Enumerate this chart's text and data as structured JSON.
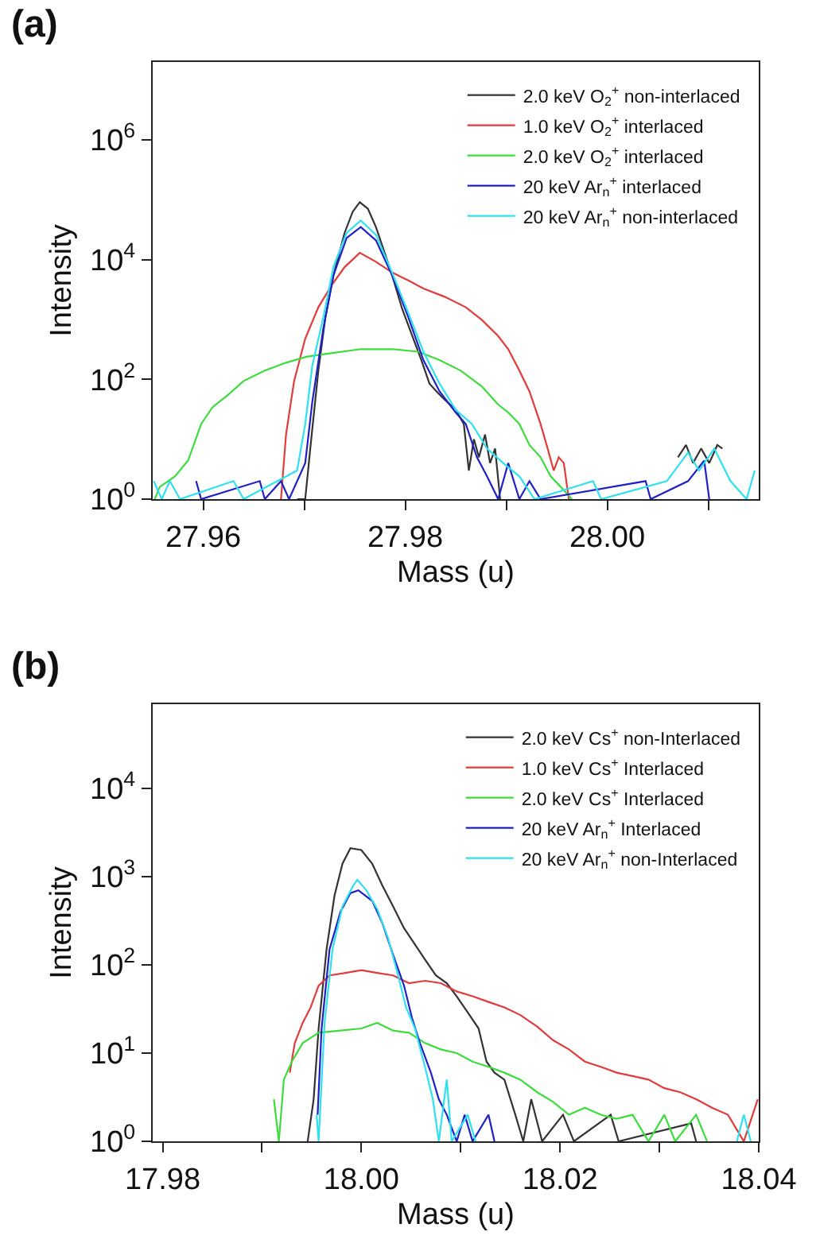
{
  "chart_data": [
    {
      "type": "line",
      "title": "(a)",
      "xlabel": "Mass (u)",
      "ylabel": "Intensity",
      "log": "y",
      "legend": "top right",
      "xlim": [
        27.955,
        28.015
      ],
      "xticks": [
        27.96,
        {
          "value": 27.97,
          "label": null
        },
        27.98,
        {
          "value": 27.99,
          "label": null
        },
        {
          "value": 28.0,
          "label": "28.00"
        },
        {
          "value": 28.01,
          "label": null
        }
      ],
      "ylim": [
        1,
        20000000
      ],
      "yticks": [
        {
          "value": 1,
          "label": "10$^{0}$"
        },
        {
          "value": 100,
          "label": "10$^{2}$"
        },
        {
          "value": 10000,
          "label": "10$^{4}$"
        },
        {
          "value": 1000000,
          "label": "10$^{6}$"
        }
      ],
      "series": [
        {
          "name": "2.0 keV O$_{2}$$^{+}$ non-interlaced",
          "color": "#333333",
          "x": [
            27.9693,
            27.9701,
            27.9706,
            27.9714,
            27.9721,
            27.9729,
            27.974,
            27.9748,
            27.9755,
            27.9763,
            27.9771,
            27.9779,
            27.9787,
            27.9797,
            27.9808,
            27.9816,
            27.9824,
            27.9831,
            27.9839,
            27.985,
            27.9858,
            27.9863,
            27.9868,
            27.9873,
            27.9879,
            27.9884,
            27.9889,
            27.9894,
            28.0,
            28.007,
            28.0078,
            28.0085,
            28.0093,
            28.0101,
            28.0109,
            28.0114
          ],
          "values": [
            1,
            1,
            7,
            140,
            1100,
            5500,
            28000,
            63000,
            91000,
            71000,
            35000,
            14000,
            5500,
            1500,
            480,
            210,
            85,
            63,
            46,
            31,
            18,
            3,
            10,
            5,
            12,
            4,
            7,
            1,
            null,
            5,
            8,
            4,
            7,
            4,
            8,
            7
          ]
        },
        {
          "name": "1.0 keV O$_{2}$$^{+}$ interlaced",
          "color": "#e23b3b",
          "x": [
            27.9677,
            27.9682,
            27.969,
            27.9701,
            27.9714,
            27.9727,
            27.974,
            27.9755,
            27.9771,
            27.9787,
            27.9803,
            27.9818,
            27.9839,
            27.986,
            27.9876,
            27.9892,
            27.9902,
            27.9913,
            27.9923,
            27.9934,
            27.9941,
            27.9947,
            27.9952,
            27.9957,
            27.9962
          ],
          "values": [
            1,
            12,
            94,
            480,
            1600,
            3700,
            7500,
            13000,
            9200,
            6100,
            4500,
            3300,
            2400,
            1600,
            980,
            530,
            320,
            140,
            63,
            18,
            7,
            3,
            5,
            4,
            1
          ]
        },
        {
          "name": "2.0 keV O$_{2}$$^{+}$ interlaced",
          "color": "#3ddc3d",
          "x": [
            27.9552,
            27.9557,
            27.9572,
            27.9585,
            27.9598,
            27.9609,
            27.9625,
            27.964,
            27.9661,
            27.9682,
            27.9703,
            27.9724,
            27.9756,
            27.9787,
            27.9813,
            27.9834,
            27.9855,
            27.9876,
            27.9892,
            27.9902,
            27.9913,
            27.9923,
            27.9934,
            27.9944,
            27.9954,
            27.9965
          ],
          "values": [
            1,
            1.6,
            2.4,
            4.4,
            18,
            34,
            56,
            94,
            140,
            190,
            240,
            270,
            320,
            320,
            290,
            210,
            140,
            76,
            38,
            28,
            18,
            8,
            5,
            2.4,
            1.6,
            1
          ]
        },
        {
          "name": "20 keV Ar$_{n}$$^{+}$ interlaced",
          "color": "#2020c8",
          "x": [
            27.9593,
            27.9598,
            27.9656,
            27.9661,
            27.9677,
            27.9685,
            27.9701,
            27.9708,
            27.9719,
            27.9729,
            27.9742,
            27.9756,
            27.9771,
            27.9787,
            27.9803,
            27.9818,
            27.9834,
            27.985,
            27.986,
            27.9871,
            27.9881,
            27.9892,
            27.9902,
            27.9913,
            27.9923,
            27.9934,
            28.0038,
            28.0043,
            28.008,
            28.0096,
            28.0101
          ],
          "values": [
            2,
            1,
            2,
            1,
            2,
            1,
            4,
            42,
            720,
            5500,
            23000,
            35000,
            21000,
            5500,
            1100,
            210,
            63,
            28,
            18,
            5,
            2.4,
            1,
            4,
            1,
            2,
            1,
            2,
            1,
            2,
            4.4,
            1
          ]
        },
        {
          "name": "20 keV Ar$_{n}$$^{+}$ non-interlaced",
          "color": "#2ee0f0",
          "x": [
            27.9551,
            27.9559,
            27.9567,
            27.9577,
            27.963,
            27.964,
            27.9693,
            27.9701,
            27.9708,
            27.9719,
            27.9729,
            27.9742,
            27.9756,
            27.9771,
            27.9787,
            27.9803,
            27.9818,
            27.9834,
            27.985,
            27.9866,
            27.9881,
            27.9897,
            27.9913,
            27.9928,
            27.9986,
            27.9994,
            28.0059,
            28.008,
            28.0091,
            28.0106,
            28.0122,
            28.0138,
            28.0146
          ],
          "values": [
            2,
            1,
            2,
            1,
            2,
            1,
            3,
            18,
            170,
            1100,
            7600,
            28000,
            45000,
            26000,
            6100,
            1300,
            290,
            85,
            31,
            18,
            7,
            4,
            2.4,
            1,
            2,
            1,
            2,
            6,
            3,
            7,
            2,
            1,
            3
          ]
        }
      ]
    },
    {
      "type": "line",
      "title": "(b)",
      "xlabel": "Mass (u)",
      "ylabel": "Intensity",
      "log": "y",
      "legend": "top right",
      "xlim": [
        17.979,
        18.04
      ],
      "xticks": [
        17.98,
        {
          "value": 17.99,
          "label": null
        },
        {
          "value": 18.0,
          "label": "18.00"
        },
        {
          "value": 18.01,
          "label": null
        },
        18.02,
        {
          "value": 18.03,
          "label": null
        },
        18.04
      ],
      "ylim": [
        1,
        90000
      ],
      "yticks": [
        {
          "value": 1,
          "label": "10$^{0}$"
        },
        {
          "value": 10,
          "label": "10$^{1}$"
        },
        {
          "value": 100,
          "label": "10$^{2}$"
        },
        {
          "value": 1000,
          "label": "10$^{3}$"
        },
        {
          "value": 10000,
          "label": "10$^{4}$"
        }
      ],
      "series": [
        {
          "name": "2.0 keV Cs$^{+}$ non-Interlaced",
          "color": "#333333",
          "x": [
            17.9946,
            17.9952,
            17.9957,
            17.9965,
            17.9973,
            17.9981,
            17.9989,
            18.0,
            18.0011,
            18.0021,
            18.0032,
            18.0043,
            18.0054,
            18.0064,
            18.0075,
            18.0086,
            18.0096,
            18.0107,
            18.0118,
            18.0126,
            18.0134,
            18.0144,
            18.0155,
            18.0163,
            18.0171,
            18.0182,
            18.0203,
            18.0214,
            18.0251,
            18.0259,
            18.0332,
            18.0337
          ],
          "values": [
            1,
            3,
            19,
            150,
            610,
            1400,
            2100,
            2000,
            1400,
            800,
            460,
            260,
            170,
            115,
            76,
            62,
            44,
            29,
            19,
            8,
            6,
            5,
            2,
            1,
            3,
            1,
            2,
            1,
            2,
            1,
            1.6,
            1
          ]
        },
        {
          "name": "1.0 keV Cs$^{+}$ Interlaced",
          "color": "#e23b3b",
          "x": [
            17.9928,
            17.9933,
            17.9941,
            17.9949,
            17.9957,
            17.9968,
            17.9984,
            18.0,
            18.0016,
            18.0032,
            18.0048,
            18.0064,
            18.008,
            18.0096,
            18.0112,
            18.0128,
            18.0144,
            18.016,
            18.0177,
            18.0193,
            18.0209,
            18.0225,
            18.0241,
            18.0257,
            18.0273,
            18.0289,
            18.0305,
            18.0321,
            18.0337,
            18.0353,
            18.0369,
            18.0385,
            18.0399
          ],
          "values": [
            6,
            13,
            22,
            33,
            58,
            76,
            81,
            87,
            81,
            76,
            62,
            66,
            62,
            50,
            44,
            38,
            33,
            27,
            20,
            14,
            11,
            8,
            7,
            6,
            5.5,
            5,
            4,
            3.6,
            3,
            2.4,
            2,
            1,
            3
          ]
        },
        {
          "name": "2.0 keV Cs$^{+}$ Interlaced",
          "color": "#3ddc3d",
          "x": [
            17.9912,
            17.9917,
            17.9922,
            17.993,
            17.9941,
            17.9957,
            17.9979,
            18.0,
            18.0016,
            18.0032,
            18.0048,
            18.0064,
            18.008,
            18.0096,
            18.0112,
            18.0128,
            18.0144,
            18.016,
            18.0177,
            18.0193,
            18.0209,
            18.0225,
            18.0241,
            18.0257,
            18.0273,
            18.0289,
            18.0305,
            18.0316,
            18.0337,
            18.0348
          ],
          "values": [
            3,
            1,
            5,
            8,
            13,
            17,
            18,
            19,
            22,
            18,
            17,
            13,
            11,
            10,
            8,
            7,
            6,
            5,
            3.6,
            2.8,
            2,
            2.4,
            2,
            1.8,
            2,
            1,
            2,
            1,
            2,
            1
          ]
        },
        {
          "name": "20 keV Ar$_{n}$$^{+}$ Interlaced",
          "color": "#2020c8",
          "x": [
            17.9956,
            17.996,
            17.9968,
            17.9979,
            17.9989,
            17.9997,
            18.0011,
            18.0021,
            18.0032,
            18.0043,
            18.0051,
            18.0059,
            18.007,
            18.0078,
            18.0086,
            18.0096,
            18.0104,
            18.0112,
            18.0128,
            18.0134
          ],
          "values": [
            2,
            19,
            150,
            400,
            650,
            700,
            530,
            300,
            130,
            58,
            25,
            13,
            6,
            3,
            2,
            1,
            2,
            1,
            2,
            1
          ]
        },
        {
          "name": "20 keV Ar$_{n}$$^{+}$ non-Interlaced",
          "color": "#2ee0f0",
          "x": [
            17.9955,
            17.9957,
            17.9963,
            17.9971,
            17.9981,
            17.9992,
            17.9996,
            18.0005,
            18.0016,
            18.0027,
            18.0037,
            18.0045,
            18.0054,
            18.0064,
            18.0072,
            18.0078,
            18.0086,
            18.0091,
            18.0107,
            18.0115,
            18.03,
            18.0378,
            18.0385,
            18.0392
          ],
          "values": [
            2,
            1,
            22,
            150,
            460,
            800,
            920,
            700,
            430,
            200,
            76,
            33,
            19,
            7,
            3,
            1,
            5,
            1,
            2,
            1,
            null,
            1,
            2,
            1
          ]
        }
      ]
    }
  ]
}
